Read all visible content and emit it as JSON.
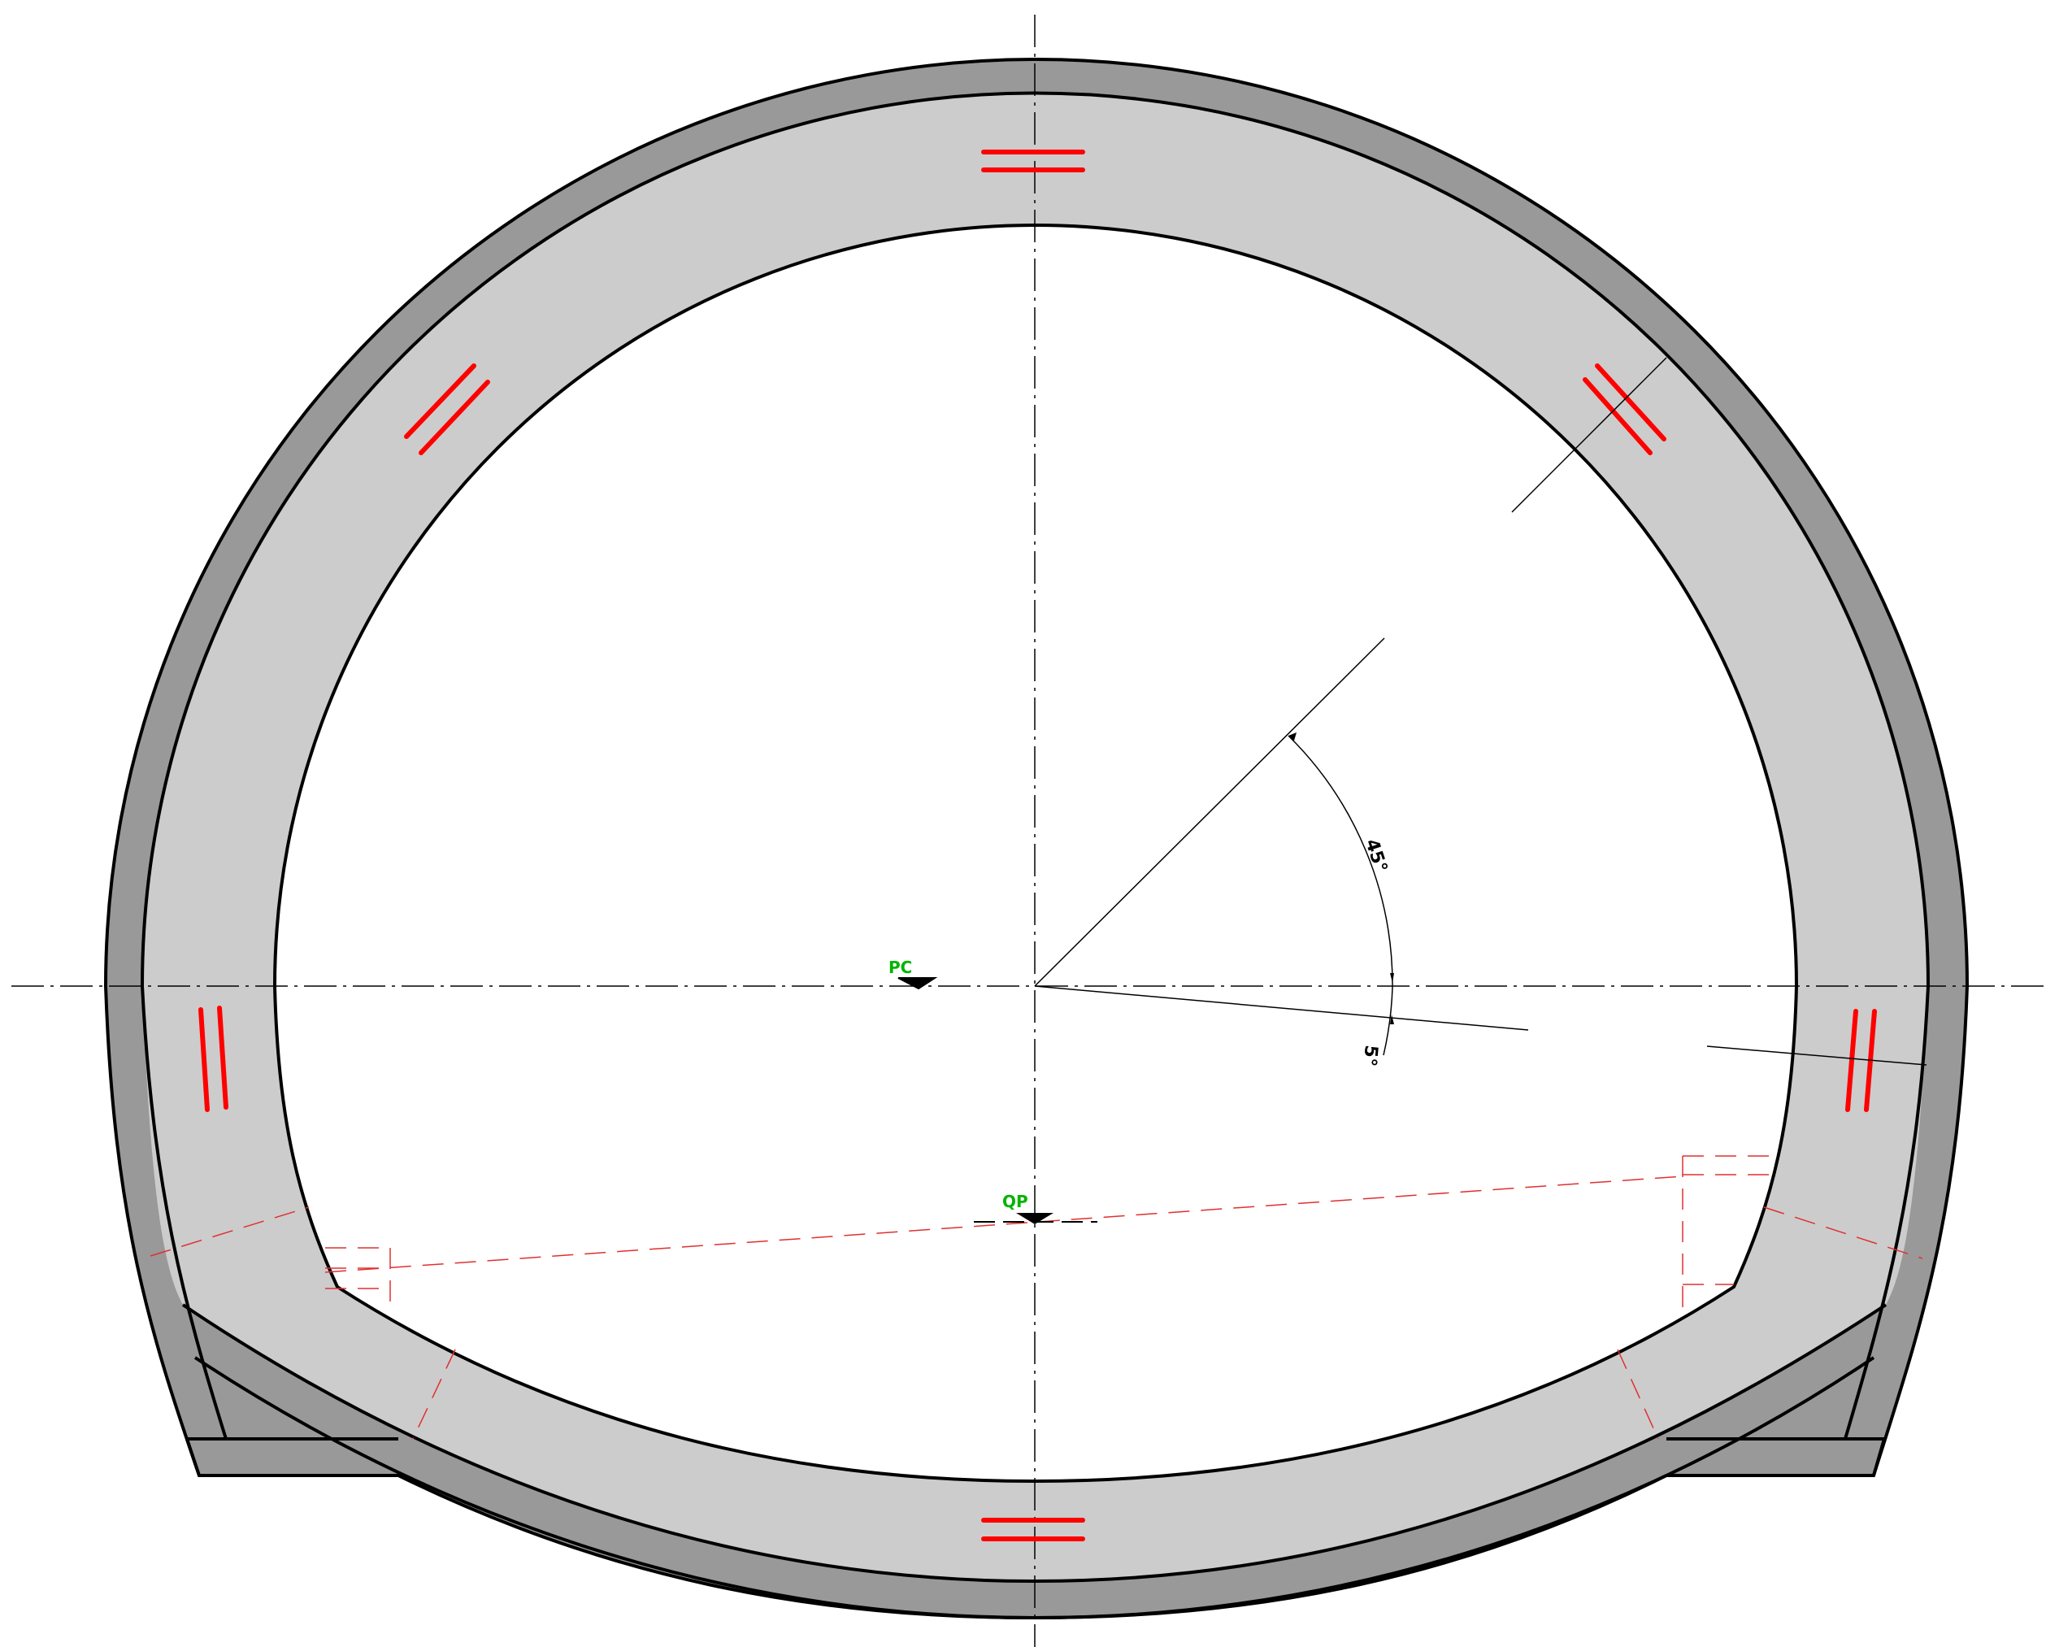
{
  "markers": {
    "pc": {
      "label": "PC"
    },
    "qp": {
      "label": "QP"
    }
  },
  "dimensions": {
    "angle_upper": "45°",
    "angle_lower": "5°"
  },
  "colors": {
    "outer_lining": "#999999",
    "inner_lining": "#cccccc",
    "background": "#ffffff",
    "outline": "#000000",
    "reinforcement": "#ff0000",
    "hidden_line": "#e03030",
    "marker_text": "#00b400"
  }
}
